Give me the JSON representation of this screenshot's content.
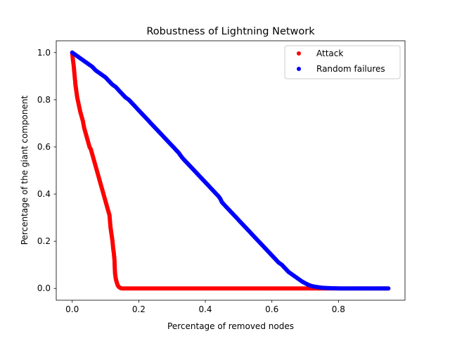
{
  "chart_data": {
    "type": "scatter",
    "title": "Robustness of Lightning Network",
    "xlabel": "Percentage of removed nodes",
    "ylabel": "Percentage of the giant component",
    "xlim": [
      -0.048,
      1.0
    ],
    "ylim": [
      -0.05,
      1.05
    ],
    "xticks": [
      0.0,
      0.2,
      0.4,
      0.6,
      0.8
    ],
    "xtick_labels": [
      "0.0",
      "0.2",
      "0.4",
      "0.6",
      "0.8"
    ],
    "yticks": [
      0.0,
      0.2,
      0.4,
      0.6,
      0.8,
      1.0
    ],
    "ytick_labels": [
      "0.0",
      "0.2",
      "0.4",
      "0.6",
      "0.8",
      "1.0"
    ],
    "grid": false,
    "legend_position": "top-right",
    "series": [
      {
        "name": "Attack",
        "color": "#ff0000",
        "points": [
          [
            0.0,
            1.0
          ],
          [
            0.002,
            0.97
          ],
          [
            0.004,
            0.95
          ],
          [
            0.006,
            0.92
          ],
          [
            0.008,
            0.89
          ],
          [
            0.01,
            0.86
          ],
          [
            0.012,
            0.84
          ],
          [
            0.015,
            0.81
          ],
          [
            0.018,
            0.79
          ],
          [
            0.021,
            0.77
          ],
          [
            0.024,
            0.75
          ],
          [
            0.028,
            0.73
          ],
          [
            0.032,
            0.71
          ],
          [
            0.036,
            0.68
          ],
          [
            0.04,
            0.66
          ],
          [
            0.044,
            0.64
          ],
          [
            0.048,
            0.62
          ],
          [
            0.052,
            0.6
          ],
          [
            0.056,
            0.59
          ],
          [
            0.06,
            0.57
          ],
          [
            0.064,
            0.55
          ],
          [
            0.068,
            0.53
          ],
          [
            0.072,
            0.51
          ],
          [
            0.076,
            0.49
          ],
          [
            0.08,
            0.47
          ],
          [
            0.084,
            0.45
          ],
          [
            0.088,
            0.43
          ],
          [
            0.092,
            0.41
          ],
          [
            0.096,
            0.39
          ],
          [
            0.1,
            0.37
          ],
          [
            0.104,
            0.35
          ],
          [
            0.108,
            0.33
          ],
          [
            0.112,
            0.31
          ],
          [
            0.115,
            0.26
          ],
          [
            0.117,
            0.24
          ],
          [
            0.119,
            0.22
          ],
          [
            0.121,
            0.2
          ],
          [
            0.123,
            0.17
          ],
          [
            0.125,
            0.15
          ],
          [
            0.127,
            0.12
          ],
          [
            0.128,
            0.08
          ],
          [
            0.129,
            0.06
          ],
          [
            0.131,
            0.04
          ],
          [
            0.133,
            0.03
          ],
          [
            0.135,
            0.02
          ],
          [
            0.138,
            0.01
          ],
          [
            0.142,
            0.004
          ],
          [
            0.146,
            0.001
          ],
          [
            0.15,
            0.0
          ],
          [
            0.2,
            0.0
          ],
          [
            0.3,
            0.0
          ],
          [
            0.4,
            0.0
          ],
          [
            0.5,
            0.0
          ],
          [
            0.6,
            0.0
          ],
          [
            0.7,
            0.0
          ],
          [
            0.8,
            0.0
          ],
          [
            0.9,
            0.0
          ],
          [
            0.95,
            0.0
          ]
        ]
      },
      {
        "name": "Random failures",
        "color": "#0000ff",
        "points": [
          [
            0.0,
            1.0
          ],
          [
            0.01,
            0.99
          ],
          [
            0.02,
            0.98
          ],
          [
            0.03,
            0.97
          ],
          [
            0.04,
            0.96
          ],
          [
            0.05,
            0.95
          ],
          [
            0.06,
            0.94
          ],
          [
            0.07,
            0.925
          ],
          [
            0.08,
            0.915
          ],
          [
            0.09,
            0.905
          ],
          [
            0.1,
            0.895
          ],
          [
            0.11,
            0.88
          ],
          [
            0.12,
            0.865
          ],
          [
            0.13,
            0.855
          ],
          [
            0.14,
            0.84
          ],
          [
            0.15,
            0.825
          ],
          [
            0.16,
            0.81
          ],
          [
            0.17,
            0.8
          ],
          [
            0.18,
            0.785
          ],
          [
            0.19,
            0.77
          ],
          [
            0.2,
            0.755
          ],
          [
            0.21,
            0.74
          ],
          [
            0.22,
            0.725
          ],
          [
            0.23,
            0.71
          ],
          [
            0.24,
            0.695
          ],
          [
            0.25,
            0.68
          ],
          [
            0.26,
            0.665
          ],
          [
            0.27,
            0.65
          ],
          [
            0.28,
            0.635
          ],
          [
            0.29,
            0.62
          ],
          [
            0.3,
            0.605
          ],
          [
            0.31,
            0.59
          ],
          [
            0.32,
            0.575
          ],
          [
            0.33,
            0.555
          ],
          [
            0.34,
            0.54
          ],
          [
            0.35,
            0.525
          ],
          [
            0.36,
            0.51
          ],
          [
            0.37,
            0.495
          ],
          [
            0.38,
            0.48
          ],
          [
            0.39,
            0.465
          ],
          [
            0.4,
            0.45
          ],
          [
            0.41,
            0.435
          ],
          [
            0.42,
            0.42
          ],
          [
            0.43,
            0.405
          ],
          [
            0.44,
            0.39
          ],
          [
            0.445,
            0.38
          ],
          [
            0.45,
            0.365
          ],
          [
            0.46,
            0.35
          ],
          [
            0.47,
            0.335
          ],
          [
            0.48,
            0.32
          ],
          [
            0.49,
            0.305
          ],
          [
            0.5,
            0.29
          ],
          [
            0.51,
            0.275
          ],
          [
            0.52,
            0.26
          ],
          [
            0.53,
            0.245
          ],
          [
            0.54,
            0.23
          ],
          [
            0.55,
            0.215
          ],
          [
            0.56,
            0.2
          ],
          [
            0.57,
            0.185
          ],
          [
            0.58,
            0.17
          ],
          [
            0.59,
            0.155
          ],
          [
            0.6,
            0.14
          ],
          [
            0.61,
            0.125
          ],
          [
            0.62,
            0.11
          ],
          [
            0.63,
            0.1
          ],
          [
            0.64,
            0.085
          ],
          [
            0.65,
            0.07
          ],
          [
            0.66,
            0.06
          ],
          [
            0.67,
            0.05
          ],
          [
            0.68,
            0.04
          ],
          [
            0.69,
            0.03
          ],
          [
            0.7,
            0.022
          ],
          [
            0.71,
            0.015
          ],
          [
            0.72,
            0.01
          ],
          [
            0.73,
            0.007
          ],
          [
            0.74,
            0.005
          ],
          [
            0.75,
            0.003
          ],
          [
            0.76,
            0.002
          ],
          [
            0.78,
            0.001
          ],
          [
            0.8,
            0.0
          ],
          [
            0.85,
            0.0
          ],
          [
            0.9,
            0.0
          ],
          [
            0.95,
            0.0
          ]
        ]
      }
    ]
  }
}
